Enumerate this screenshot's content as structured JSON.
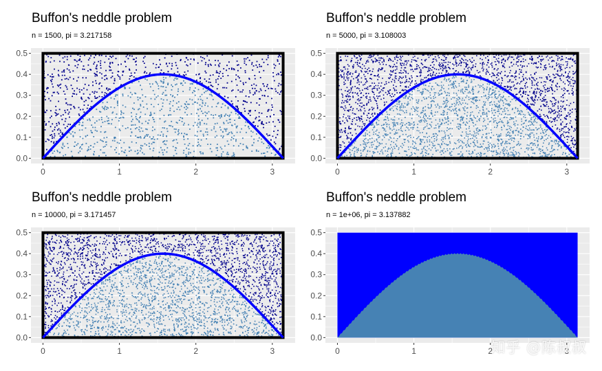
{
  "chart_data": [
    {
      "type": "scatter",
      "title": "Buffon's neddle problem",
      "subtitle": "n = 1500, pi = 3.217158",
      "n": 1500,
      "pi_estimate": 3.217158,
      "xlim": [
        0,
        3.14159
      ],
      "ylim": [
        0,
        0.5
      ],
      "x_ticks": [
        "0",
        "1",
        "2",
        "3"
      ],
      "y_ticks": [
        "0.0",
        "0.1",
        "0.2",
        "0.3",
        "0.4",
        "0.5"
      ],
      "curve": "y = 0.4 * sin(x)",
      "series": [
        {
          "name": "",
          "color": "#00008b",
          "region": "above curve"
        },
        {
          "name": "",
          "color": "#4682b4",
          "region": "below curve"
        }
      ],
      "curve_color": "#0000ff",
      "border_color": "#000000",
      "background": "#ebebeb",
      "grid": true
    },
    {
      "type": "scatter",
      "title": "Buffon's neddle problem",
      "subtitle": "n = 5000, pi = 3.108003",
      "n": 5000,
      "pi_estimate": 3.108003,
      "xlim": [
        0,
        3.14159
      ],
      "ylim": [
        0,
        0.5
      ],
      "x_ticks": [
        "0",
        "1",
        "2",
        "3"
      ],
      "y_ticks": [
        "0.0",
        "0.1",
        "0.2",
        "0.3",
        "0.4",
        "0.5"
      ],
      "curve": "y = 0.4 * sin(x)",
      "series": [
        {
          "name": "",
          "color": "#00008b",
          "region": "above curve"
        },
        {
          "name": "",
          "color": "#4682b4",
          "region": "below curve"
        }
      ],
      "curve_color": "#0000ff",
      "border_color": "#000000",
      "background": "#ebebeb",
      "grid": true
    },
    {
      "type": "scatter",
      "title": "Buffon's neddle problem",
      "subtitle": "n = 10000, pi = 3.171457",
      "n": 10000,
      "pi_estimate": 3.171457,
      "xlim": [
        0,
        3.14159
      ],
      "ylim": [
        0,
        0.5
      ],
      "x_ticks": [
        "0",
        "1",
        "2",
        "3"
      ],
      "y_ticks": [
        "0.0",
        "0.1",
        "0.2",
        "0.3",
        "0.4",
        "0.5"
      ],
      "curve": "y = 0.4 * sin(x)",
      "series": [
        {
          "name": "",
          "color": "#00008b",
          "region": "above curve"
        },
        {
          "name": "",
          "color": "#4682b4",
          "region": "below curve"
        }
      ],
      "curve_color": "#0000ff",
      "border_color": "#000000",
      "background": "#ebebeb",
      "grid": true
    },
    {
      "type": "area",
      "title": "Buffon's neddle problem",
      "subtitle": "n = 1e+06, pi = 3.137882",
      "n": 1000000,
      "pi_estimate": 3.137882,
      "xlim": [
        0,
        3.14159
      ],
      "ylim": [
        0,
        0.5
      ],
      "x_ticks": [
        "0",
        "1",
        "2",
        "3"
      ],
      "y_ticks": [
        "0.0",
        "0.1",
        "0.2",
        "0.3",
        "0.4",
        "0.5"
      ],
      "curve": "y = 0.4 * sin(x)",
      "series": [
        {
          "name": "",
          "color": "#0000ff",
          "region": "above curve"
        },
        {
          "name": "",
          "color": "#4682b4",
          "region": "below curve"
        }
      ],
      "background": "#ebebeb",
      "grid": true
    }
  ],
  "watermark": "知乎 @陈叔叔"
}
